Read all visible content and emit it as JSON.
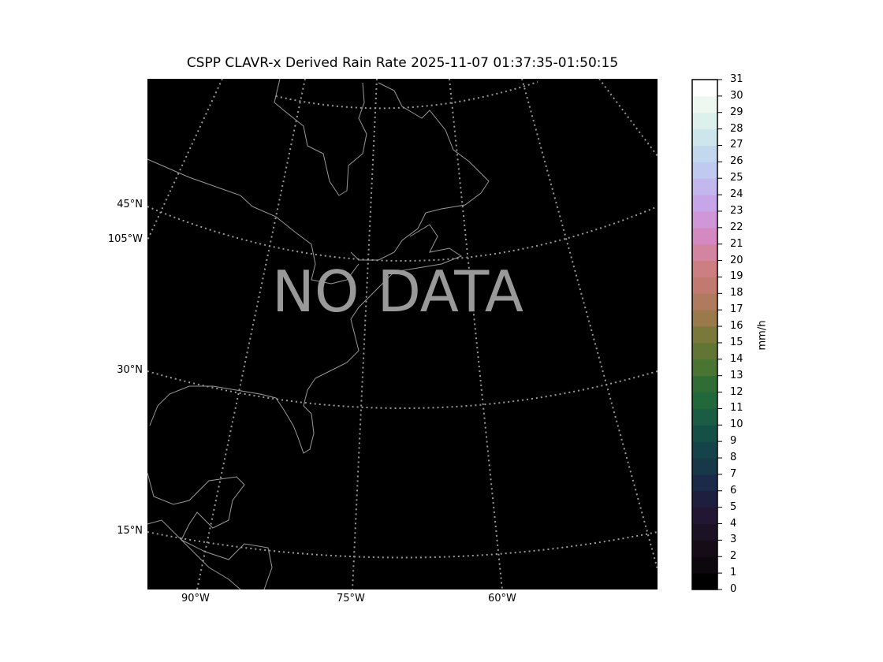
{
  "title": "CSPP CLAVR-x Derived Rain Rate 2025-11-07 01:37:35-01:50:15",
  "map": {
    "overlay_text": "NO DATA",
    "background_color": "#000000",
    "coastline_color": "#999999",
    "grid_color": "#999999",
    "lat_labels": [
      "45°N",
      "105°W",
      "30°N",
      "15°N"
    ],
    "lon_labels": [
      "90°W",
      "75°W",
      "60°W"
    ]
  },
  "colorbar": {
    "label": "mm/h",
    "range": [
      0,
      31
    ],
    "ticks": [
      "0",
      "1",
      "2",
      "3",
      "4",
      "5",
      "6",
      "7",
      "8",
      "9",
      "10",
      "11",
      "12",
      "13",
      "14",
      "15",
      "16",
      "17",
      "18",
      "19",
      "20",
      "21",
      "22",
      "23",
      "24",
      "25",
      "26",
      "27",
      "28",
      "29",
      "30",
      "31"
    ],
    "colors": [
      "#000000",
      "#0d080d",
      "#150c17",
      "#1c1226",
      "#211734",
      "#1e1e3e",
      "#1b2a48",
      "#163848",
      "#14444a",
      "#155047",
      "#1a5d42",
      "#21683b",
      "#306d34",
      "#4a7431",
      "#637535",
      "#7a783a",
      "#9a7a4a",
      "#b07a5f",
      "#c27a70",
      "#cc7e80",
      "#d384a0",
      "#d48ac0",
      "#cf96d8",
      "#c6a6e8",
      "#c2b8ee",
      "#c0caf0",
      "#c2d8ee",
      "#cce6ec",
      "#dcf0ec",
      "#eef8f0",
      "#ffffff"
    ]
  }
}
